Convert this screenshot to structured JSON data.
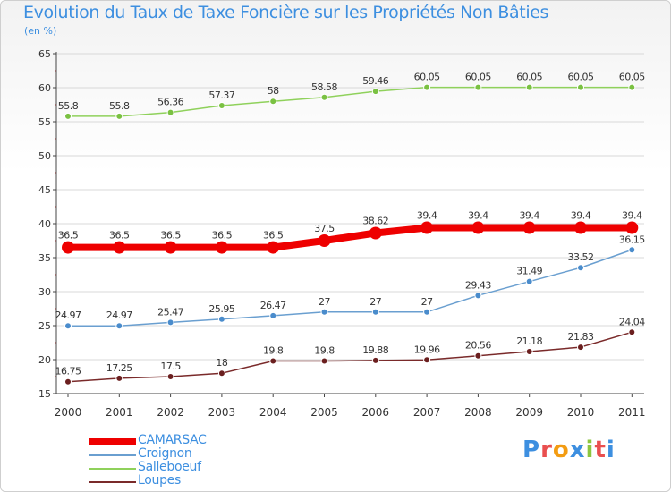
{
  "title": "Evolution du Taux de Taxe Foncière sur les Propriétés Non Bâties",
  "subtitle": "(en %)",
  "logo": {
    "text": "Proxiti",
    "colors": [
      "#3d8fe0",
      "#e94f4f",
      "#f39c12",
      "#3d8fe0",
      "#8cc63f",
      "#e94f4f",
      "#3d8fe0"
    ]
  },
  "chart_data": {
    "type": "line",
    "x": [
      "2000",
      "2001",
      "2002",
      "2003",
      "2004",
      "2005",
      "2006",
      "2007",
      "2008",
      "2009",
      "2010",
      "2011"
    ],
    "ylim": [
      15,
      65
    ],
    "yticks": [
      "15",
      "20",
      "25",
      "30",
      "35",
      "40",
      "45",
      "50",
      "55",
      "60",
      "65"
    ],
    "series": [
      {
        "name": "Salleboeuf",
        "color": "#8fd15b",
        "dot": "#7ac142",
        "width": 1.5,
        "dotsize": 3.5,
        "values": [
          55.8,
          55.8,
          56.36,
          57.37,
          58,
          58.58,
          59.46,
          60.05,
          60.05,
          60.05,
          60.05,
          60.05
        ],
        "labels": [
          "55.8",
          "55.8",
          "56.36",
          "57.37",
          "58",
          "58.58",
          "59.46",
          "60.05",
          "60.05",
          "60.05",
          "60.05",
          "60.05"
        ]
      },
      {
        "name": "CAMARSAC",
        "color": "#ee0000",
        "dot": "#ee0000",
        "width": 8,
        "dotsize": 7,
        "values": [
          36.5,
          36.5,
          36.5,
          36.5,
          36.5,
          37.5,
          38.62,
          39.4,
          39.4,
          39.4,
          39.4,
          39.4
        ],
        "labels": [
          "36.5",
          "36.5",
          "36.5",
          "36.5",
          "36.5",
          "37.5",
          "38.62",
          "39.4",
          "39.4",
          "39.4",
          "39.4",
          "39.4"
        ]
      },
      {
        "name": "Croignon",
        "color": "#6a9fd0",
        "dot": "#4a8ccc",
        "width": 1.5,
        "dotsize": 3.5,
        "values": [
          24.97,
          24.97,
          25.47,
          25.95,
          26.47,
          27,
          27,
          27,
          29.43,
          31.49,
          33.52,
          36.15
        ],
        "labels": [
          "24.97",
          "24.97",
          "25.47",
          "25.95",
          "26.47",
          "27",
          "27",
          "27",
          "29.43",
          "31.49",
          "33.52",
          "36.15"
        ]
      },
      {
        "name": "Loupes",
        "color": "#7a2a2a",
        "dot": "#6b1f1f",
        "width": 1.5,
        "dotsize": 3.5,
        "values": [
          16.75,
          17.25,
          17.5,
          18,
          19.8,
          19.8,
          19.88,
          19.96,
          20.56,
          21.18,
          21.83,
          24.04
        ],
        "labels": [
          "16.75",
          "17.25",
          "17.5",
          "18",
          "19.8",
          "19.8",
          "19.88",
          "19.96",
          "20.56",
          "21.18",
          "21.83",
          "24.04"
        ]
      }
    ],
    "legend": [
      {
        "name": "CAMARSAC",
        "color": "#ee0000",
        "width": 8
      },
      {
        "name": "Croignon",
        "color": "#6a9fd0",
        "width": 2
      },
      {
        "name": "Salleboeuf",
        "color": "#8fd15b",
        "width": 2
      },
      {
        "name": "Loupes",
        "color": "#7a2a2a",
        "width": 2
      }
    ]
  }
}
